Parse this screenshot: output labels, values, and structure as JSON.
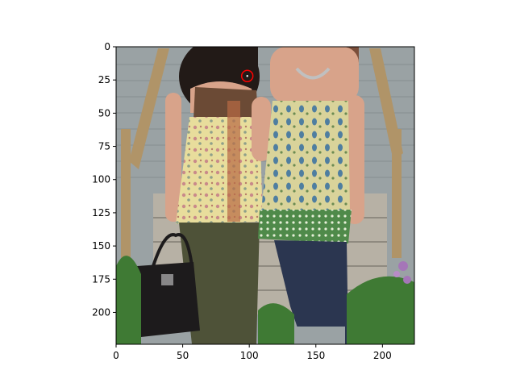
{
  "axes": {
    "xlim": [
      0,
      224
    ],
    "ylim": [
      224,
      0
    ],
    "x_ticks": [
      {
        "value": 0,
        "label": "0"
      },
      {
        "value": 50,
        "label": "50"
      },
      {
        "value": 100,
        "label": "100"
      },
      {
        "value": 150,
        "label": "150"
      },
      {
        "value": 200,
        "label": "200"
      }
    ],
    "y_ticks": [
      {
        "value": 0,
        "label": "0"
      },
      {
        "value": 25,
        "label": "25"
      },
      {
        "value": 50,
        "label": "50"
      },
      {
        "value": 75,
        "label": "75"
      },
      {
        "value": 100,
        "label": "100"
      },
      {
        "value": 125,
        "label": "125"
      },
      {
        "value": 150,
        "label": "150"
      },
      {
        "value": 175,
        "label": "175"
      },
      {
        "value": 200,
        "label": "200"
      }
    ]
  },
  "marker": {
    "x": 98.5,
    "y": 22.0,
    "color": "#ff0000",
    "shape": "circle"
  },
  "photo": {
    "subject": "two women standing in front of wooden porch steps",
    "colors": {
      "siding": "#9aa2a4",
      "steps": "#b7b1a5",
      "rail": "#b09468",
      "hair": "#221a17",
      "skin": "#d8a38a",
      "left_top": "#e8dd9c",
      "left_bodice": "#6b4a35",
      "left_pants": "#4e5238",
      "right_top": "#d9d39a",
      "right_pattern": "#4f7ea0",
      "right_hem": "#4f8a4a",
      "right_jeans": "#2b3650",
      "bag": "#1d1b1c",
      "plants": "#3f7a34",
      "flowers": "#a576b8"
    }
  }
}
